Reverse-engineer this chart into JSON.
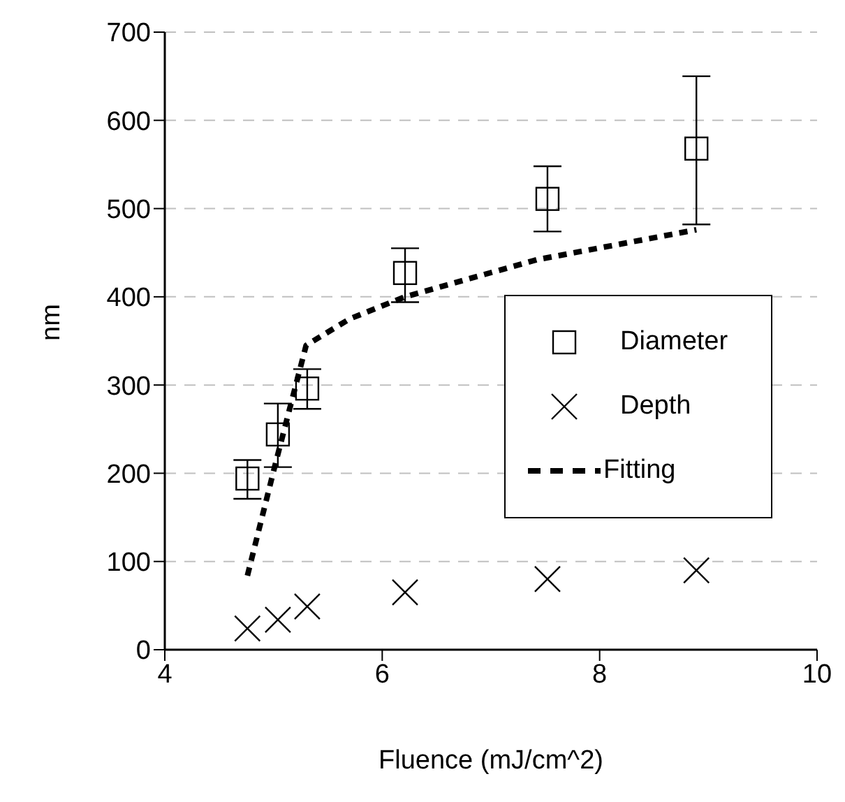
{
  "chart_data": {
    "type": "scatter",
    "xlabel": "Fluence (mJ/cm^2)",
    "ylabel": "nm",
    "xlim": [
      4,
      10
    ],
    "xticks": [
      4,
      6,
      8,
      10
    ],
    "ylim": [
      0,
      700
    ],
    "yticks": [
      0,
      100,
      200,
      300,
      400,
      500,
      600,
      700
    ],
    "grid": "y",
    "legend": "right",
    "series": [
      {
        "name": "Diameter",
        "marker": "square",
        "color": "#000000",
        "x": [
          4.76,
          5.04,
          5.31,
          6.21,
          7.52,
          8.89
        ],
        "values": [
          194,
          244,
          296,
          427,
          511,
          568
        ],
        "errors": [
          [
            171,
            215
          ],
          [
            207,
            279
          ],
          [
            273,
            318
          ],
          [
            394,
            455
          ],
          [
            474,
            548
          ],
          [
            482,
            650
          ]
        ]
      },
      {
        "name": "Depth",
        "marker": "cross",
        "color": "#000000",
        "x": [
          4.76,
          5.04,
          5.31,
          6.21,
          7.52,
          8.89
        ],
        "values": [
          24,
          34,
          49,
          65,
          80,
          90
        ]
      },
      {
        "name": "Fitting",
        "type": "line",
        "marker": "none",
        "line_style": "dashed",
        "color": "#000000",
        "x": [
          4.76,
          5.02,
          5.3,
          5.7,
          6.21,
          7.42,
          8.89
        ],
        "values": [
          84,
          212,
          345,
          375,
          400,
          442,
          476
        ]
      }
    ]
  }
}
